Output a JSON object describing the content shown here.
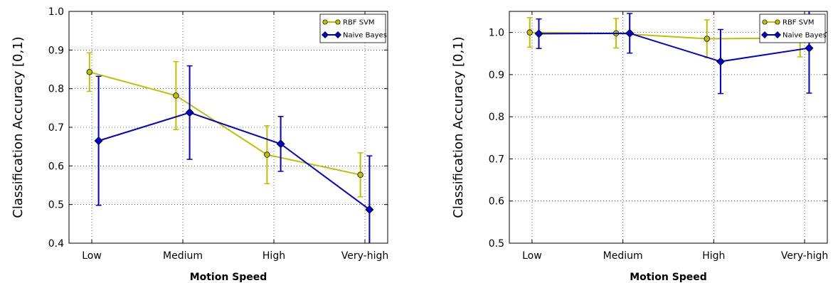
{
  "chart_data": [
    {
      "type": "line",
      "title": "",
      "xlabel": "Motion Speed",
      "ylabel": "Classification Accuracy [0,1)",
      "categories": [
        "Low",
        "Medium",
        "High",
        "Very-high"
      ],
      "ylim": [
        0.4,
        1.0
      ],
      "yticks": [
        "0.4",
        "0.5",
        "0.6",
        "0.7",
        "0.8",
        "0.9",
        "1.0"
      ],
      "grid": true,
      "legend_position": "top-right",
      "series": [
        {
          "name": "RBF SVM",
          "color": "#bfbf00",
          "marker": "circle",
          "x": [
            0.95,
            2.85,
            4.85,
            6.9
          ],
          "values": [
            0.843,
            0.782,
            0.629,
            0.577
          ],
          "err": [
            0.05,
            0.088,
            0.075,
            0.057
          ]
        },
        {
          "name": "Naive Bayes",
          "color": "#0000cc",
          "marker": "diamond",
          "x": [
            1.15,
            3.15,
            5.15,
            7.1
          ],
          "values": [
            0.665,
            0.738,
            0.657,
            0.487
          ],
          "err": [
            0.167,
            0.121,
            0.071,
            0.139
          ]
        }
      ]
    },
    {
      "type": "line",
      "title": "",
      "xlabel": "Motion Speed",
      "ylabel": "Classification Accuracy [0,1)",
      "categories": [
        "Low",
        "Medium",
        "High",
        "Very-high"
      ],
      "ylim": [
        0.5,
        1.05
      ],
      "yticks": [
        "0.5",
        "0.6",
        "0.7",
        "0.8",
        "0.9",
        "1.0"
      ],
      "grid": true,
      "legend_position": "top-right",
      "series": [
        {
          "name": "RBF SVM",
          "color": "#bfbf00",
          "marker": "circle",
          "x": [
            0.95,
            2.85,
            4.85,
            6.9
          ],
          "values": [
            1.0,
            0.998,
            0.985,
            0.987
          ],
          "err": [
            0.035,
            0.035,
            0.045,
            0.045
          ]
        },
        {
          "name": "Naive Bayes",
          "color": "#0000cc",
          "marker": "diamond",
          "x": [
            1.15,
            3.15,
            5.15,
            7.1
          ],
          "values": [
            0.997,
            0.998,
            0.931,
            0.963
          ],
          "err": [
            0.035,
            0.047,
            0.076,
            0.107
          ]
        }
      ]
    }
  ]
}
